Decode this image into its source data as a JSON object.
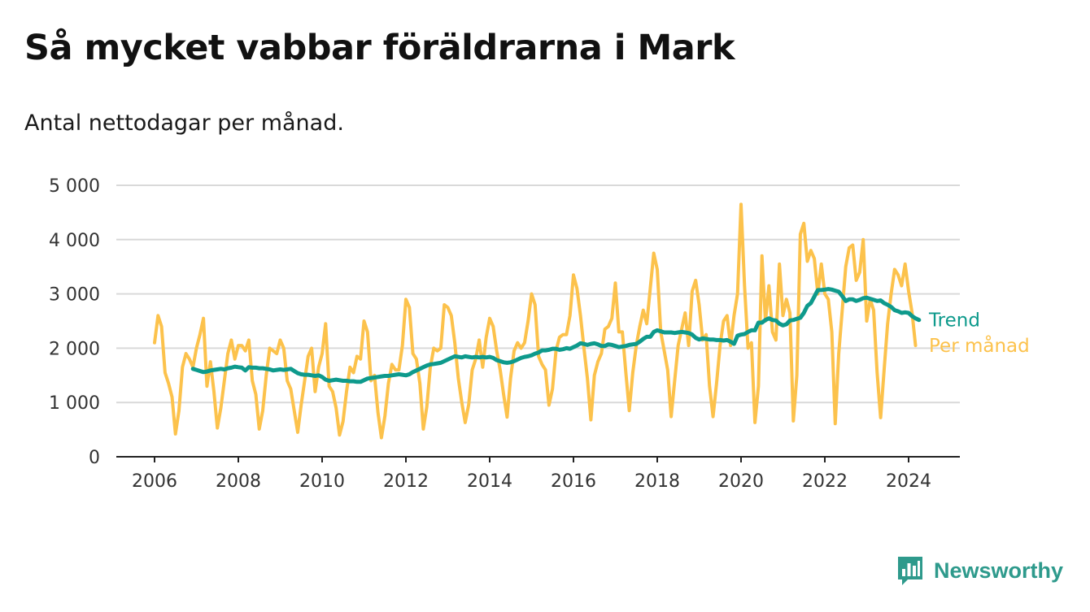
{
  "header": {
    "title": "Så mycket vabbar föräldrarna i Mark",
    "subtitle": "Antal nettodagar per månad."
  },
  "brand": {
    "name": "Newsworthy",
    "icon": "newsworthy-logo-icon",
    "color": "#2e9a8c"
  },
  "chart_data": {
    "type": "line",
    "title": "Så mycket vabbar föräldrarna i Mark",
    "subtitle": "Antal nettodagar per månad.",
    "xlabel": "",
    "ylabel": "",
    "x_start": 2006.0,
    "x_step": 0.08333,
    "xlim": [
      2006,
      2024.4
    ],
    "ylim": [
      0,
      5000
    ],
    "x_ticks": [
      2006,
      2008,
      2010,
      2012,
      2014,
      2016,
      2018,
      2020,
      2022,
      2024
    ],
    "x_tick_labels": [
      "2006",
      "2008",
      "2010",
      "2012",
      "2014",
      "2016",
      "2018",
      "2020",
      "2022",
      "2024"
    ],
    "y_ticks": [
      0,
      1000,
      2000,
      3000,
      4000,
      5000
    ],
    "y_tick_labels": [
      "0",
      "1 000",
      "2 000",
      "3 000",
      "4 000",
      "5 000"
    ],
    "grid": true,
    "legend": "right end of lines",
    "series": [
      {
        "name": "Per månad",
        "color": "#fcc24c",
        "start_index": 0,
        "values": [
          2100,
          2600,
          2400,
          1550,
          1350,
          1100,
          420,
          850,
          1650,
          1900,
          1800,
          1650,
          2000,
          2250,
          2550,
          1300,
          1750,
          1200,
          530,
          900,
          1400,
          1900,
          2150,
          1800,
          2050,
          2050,
          1950,
          2150,
          1400,
          1150,
          510,
          850,
          1500,
          2000,
          1950,
          1900,
          2150,
          2000,
          1400,
          1250,
          850,
          450,
          950,
          1400,
          1850,
          2000,
          1200,
          1650,
          1900,
          2450,
          1300,
          1200,
          900,
          400,
          650,
          1200,
          1650,
          1550,
          1850,
          1800,
          2500,
          2300,
          1400,
          1500,
          810,
          350,
          750,
          1350,
          1700,
          1600,
          1600,
          2050,
          2900,
          2750,
          1900,
          1800,
          1350,
          510,
          920,
          1650,
          2000,
          1950,
          2000,
          2800,
          2750,
          2600,
          2100,
          1450,
          1000,
          630,
          960,
          1600,
          1800,
          2150,
          1650,
          2200,
          2550,
          2400,
          1950,
          1600,
          1150,
          730,
          1450,
          1950,
          2100,
          2000,
          2100,
          2500,
          3000,
          2800,
          1850,
          1700,
          1600,
          950,
          1250,
          1950,
          2200,
          2250,
          2250,
          2600,
          3350,
          3100,
          2600,
          2000,
          1450,
          680,
          1500,
          1750,
          1900,
          2350,
          2400,
          2550,
          3200,
          2300,
          2300,
          1550,
          850,
          1550,
          2050,
          2400,
          2700,
          2450,
          3100,
          3750,
          3450,
          2300,
          1950,
          1600,
          740,
          1400,
          2050,
          2350,
          2650,
          2050,
          3050,
          3250,
          2800,
          2150,
          2250,
          1300,
          740,
          1350,
          2050,
          2500,
          2600,
          2050,
          2600,
          3000,
          4650,
          3150,
          2000,
          2100,
          630,
          1300,
          3700,
          2500,
          3150,
          2300,
          2150,
          3550,
          2600,
          2900,
          2650,
          660,
          1500,
          4100,
          4300,
          3600,
          3800,
          3650,
          3000,
          3550,
          3000,
          2900,
          2300,
          610,
          1900,
          2700,
          3500,
          3850,
          3900,
          3250,
          3400,
          4000,
          2500,
          2900,
          2700,
          1550,
          720,
          1600,
          2450,
          3000,
          3450,
          3350,
          3150,
          3550,
          3050,
          2650,
          2050
        ]
      },
      {
        "name": "Trend",
        "color": "#0e9a8c",
        "start_index": 11,
        "values": [
          1620,
          1600,
          1580,
          1560,
          1570,
          1590,
          1600,
          1610,
          1620,
          1610,
          1630,
          1640,
          1660,
          1650,
          1640,
          1590,
          1650,
          1640,
          1640,
          1630,
          1630,
          1620,
          1610,
          1590,
          1600,
          1610,
          1600,
          1610,
          1620,
          1580,
          1540,
          1520,
          1510,
          1510,
          1500,
          1490,
          1500,
          1470,
          1420,
          1400,
          1410,
          1420,
          1410,
          1400,
          1400,
          1390,
          1390,
          1380,
          1380,
          1410,
          1440,
          1450,
          1460,
          1470,
          1480,
          1490,
          1490,
          1500,
          1510,
          1520,
          1510,
          1500,
          1520,
          1560,
          1590,
          1620,
          1650,
          1680,
          1700,
          1710,
          1720,
          1730,
          1760,
          1790,
          1820,
          1850,
          1840,
          1830,
          1850,
          1840,
          1830,
          1840,
          1830,
          1840,
          1830,
          1840,
          1820,
          1780,
          1760,
          1740,
          1730,
          1740,
          1760,
          1790,
          1820,
          1840,
          1850,
          1870,
          1900,
          1920,
          1960,
          1960,
          1970,
          1990,
          1990,
          1970,
          1980,
          2000,
          1990,
          2020,
          2050,
          2090,
          2080,
          2060,
          2080,
          2090,
          2070,
          2040,
          2040,
          2070,
          2060,
          2040,
          2020,
          2030,
          2040,
          2060,
          2070,
          2080,
          2120,
          2170,
          2210,
          2210,
          2300,
          2330,
          2310,
          2290,
          2290,
          2290,
          2280,
          2290,
          2300,
          2290,
          2280,
          2250,
          2190,
          2160,
          2180,
          2170,
          2160,
          2160,
          2150,
          2150,
          2140,
          2150,
          2120,
          2080,
          2230,
          2250,
          2260,
          2300,
          2330,
          2330,
          2470,
          2470,
          2520,
          2550,
          2520,
          2510,
          2450,
          2420,
          2440,
          2510,
          2520,
          2540,
          2560,
          2650,
          2780,
          2830,
          2950,
          3070,
          3070,
          3080,
          3090,
          3080,
          3060,
          3040,
          2960,
          2870,
          2900,
          2900,
          2870,
          2890,
          2920,
          2930,
          2910,
          2890,
          2870,
          2880,
          2830,
          2800,
          2760,
          2700,
          2680,
          2650,
          2660,
          2650,
          2590,
          2550,
          2520
        ]
      }
    ]
  }
}
